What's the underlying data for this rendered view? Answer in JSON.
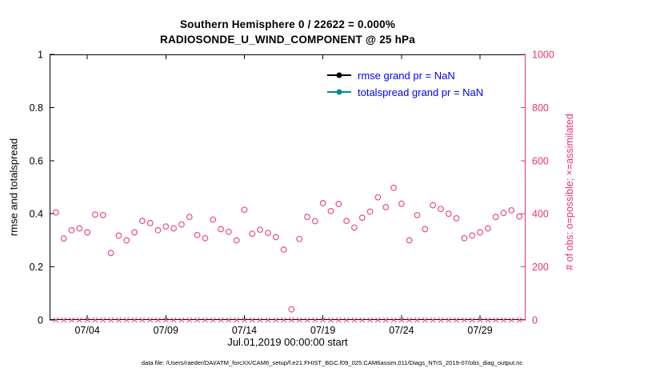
{
  "chart_data": {
    "type": "scatter",
    "title": "Southern Hemisphere 0 / 22622 = 0.000%",
    "subtitle": "RADIOSONDE_U_WIND_COMPONENT @ 25 hPa",
    "xlabel": "Jul.01,2019 00:00:00 start",
    "ylabel_left": "rmse and totalspread",
    "ylabel_right": "# of obs: o=possible; ×=assimilated",
    "legend": {
      "rmse": {
        "label": "rmse grand pr = NaN",
        "color": "#000000"
      },
      "totalspread": {
        "label": "totalspread grand pr = NaN",
        "color": "#008b8b"
      }
    },
    "x_range_days": [
      1.6,
      31.9
    ],
    "x_tick_days": [
      4,
      9,
      14,
      19,
      24,
      29
    ],
    "x_tick_labels": [
      "07/04",
      "07/09",
      "07/14",
      "07/19",
      "07/24",
      "07/29"
    ],
    "ylim_left": [
      0,
      1
    ],
    "left_ticks": [
      "0",
      "0.2",
      "0.4",
      "0.6",
      "0.8",
      "1"
    ],
    "ylim_right": [
      0,
      1000
    ],
    "right_ticks": [
      0,
      200,
      400,
      600,
      800,
      1000
    ],
    "days_july_2019": [
      2,
      2.5,
      3,
      3.5,
      4,
      4.5,
      5,
      5.5,
      6,
      6.5,
      7,
      7.5,
      8,
      8.5,
      9,
      9.5,
      10,
      10.5,
      11,
      11.5,
      12,
      12.5,
      13,
      13.5,
      14,
      14.5,
      15,
      15.5,
      16,
      16.5,
      17,
      17.5,
      18,
      18.5,
      19,
      19.5,
      20,
      20.5,
      21,
      21.5,
      22,
      22.5,
      23,
      23.5,
      24,
      24.5,
      25,
      25.5,
      26,
      26.5,
      27,
      27.5,
      28,
      28.5,
      29,
      29.5,
      30,
      30.5,
      31,
      31.5
    ],
    "possible_counts": [
      405,
      307,
      338,
      345,
      330,
      397,
      395,
      252,
      318,
      300,
      330,
      373,
      365,
      338,
      352,
      345,
      360,
      388,
      320,
      308,
      378,
      342,
      332,
      300,
      415,
      325,
      340,
      328,
      312,
      265,
      40,
      305,
      388,
      372,
      440,
      410,
      437,
      373,
      348,
      385,
      408,
      462,
      425,
      498,
      438,
      300,
      395,
      342,
      432,
      418,
      400,
      383,
      308,
      318,
      330,
      345,
      388,
      403,
      413,
      390
    ],
    "assimilated_counts": [
      0,
      0,
      0,
      0,
      0,
      0,
      0,
      0,
      0,
      0,
      0,
      0,
      0,
      0,
      0,
      0,
      0,
      0,
      0,
      0,
      0,
      0,
      0,
      0,
      0,
      0,
      0,
      0,
      0,
      0,
      0,
      0,
      0,
      0,
      0,
      0,
      0,
      0,
      0,
      0,
      0,
      0,
      0,
      0,
      0,
      0,
      0,
      0,
      0,
      0,
      0,
      0,
      0,
      0,
      0,
      0,
      0,
      0,
      0,
      0
    ],
    "rmse_grand": "NaN",
    "totalspread_grand": "NaN"
  },
  "colors": {
    "obs_pink": "#ec4c86",
    "right_axis_pink": "#e6317a",
    "legend_text_blue": "#0000ff",
    "teal": "#008b8b",
    "black": "#000000"
  },
  "caption": "data file: /Users/raeder/DAI/ATM_forcXX/CAM6_setup/f.e21.FHIST_BGC.f09_025.CAM6assim.011/Diags_NTrS_2019-07/obs_diag_output.nc"
}
